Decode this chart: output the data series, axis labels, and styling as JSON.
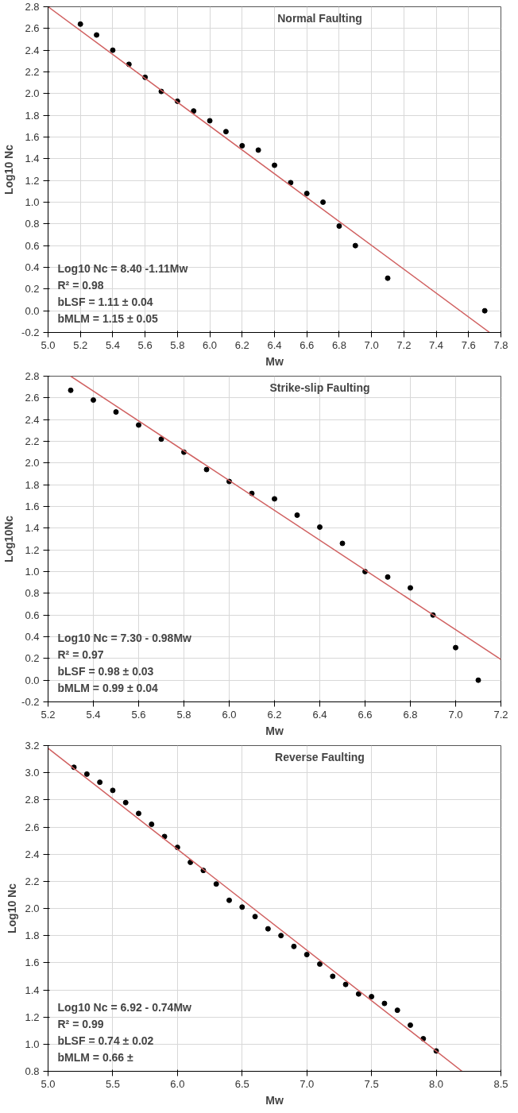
{
  "chart_data": [
    {
      "type": "scatter",
      "title": "Normal Faulting",
      "xlabel": "Mw",
      "ylabel": "Log10 Nc",
      "xlim": [
        5.0,
        7.8
      ],
      "ylim": [
        -0.2,
        2.8
      ],
      "xticks": [
        {
          "value": 5.0,
          "label": "5.0"
        },
        5.2,
        5.4,
        5.6,
        5.8,
        {
          "value": 6.0,
          "label": "6.0"
        },
        6.2,
        6.4,
        6.6,
        6.8,
        {
          "value": 7.0,
          "label": "7.0"
        },
        7.2,
        7.4,
        7.6,
        7.8
      ],
      "yticks": [
        -0.2,
        {
          "value": 0.0,
          "label": "0.0"
        },
        0.2,
        0.4,
        0.6,
        0.8,
        {
          "value": 1.0,
          "label": "1.0"
        },
        1.2,
        1.4,
        1.6,
        1.8,
        {
          "value": 2.0,
          "label": "2.0"
        },
        2.2,
        2.4,
        2.6,
        2.8
      ],
      "grid": true,
      "annotations": [
        "Log10 Nc = 8.40 -1.11Mw",
        "R² = 0.98",
        "bLSF = 1.11 ± 0.04",
        "bMLM = 1.15 ± 0.05"
      ],
      "series": [
        {
          "marker": "circle",
          "color": "#000000",
          "x": [
            5.2,
            5.3,
            5.4,
            5.5,
            5.6,
            5.7,
            5.8,
            5.9,
            6.0,
            6.1,
            6.2,
            6.3,
            6.4,
            6.5,
            6.6,
            6.7,
            6.8,
            6.9,
            7.1,
            7.7
          ],
          "values": [
            2.64,
            2.54,
            2.4,
            2.27,
            2.15,
            2.02,
            1.93,
            1.84,
            1.75,
            1.65,
            1.52,
            1.48,
            1.34,
            1.18,
            1.08,
            1.0,
            0.78,
            0.6,
            0.3,
            0.0
          ]
        },
        {
          "type": "line",
          "color": "#d06060",
          "x": [
            5.0,
            7.73
          ],
          "values": [
            2.8,
            -0.2
          ]
        }
      ]
    },
    {
      "type": "scatter",
      "title": "Strike-slip Faulting",
      "xlabel": "Mw",
      "ylabel": "Log10Nc",
      "xlim": [
        5.2,
        7.2
      ],
      "ylim": [
        -0.2,
        2.8
      ],
      "xticks": [
        5.2,
        5.4,
        5.6,
        5.8,
        {
          "value": 6.0,
          "label": "6.0"
        },
        6.2,
        6.4,
        6.6,
        6.8,
        {
          "value": 7.0,
          "label": "7.0"
        },
        7.2
      ],
      "yticks": [
        -0.2,
        {
          "value": 0.0,
          "label": "0.0"
        },
        0.2,
        0.4,
        0.6,
        0.8,
        {
          "value": 1.0,
          "label": "1.0"
        },
        1.2,
        1.4,
        1.6,
        1.8,
        {
          "value": 2.0,
          "label": "2.0"
        },
        2.2,
        2.4,
        2.6,
        2.8
      ],
      "grid": true,
      "annotations": [
        "Log10 Nc = 7.30 - 0.98Mw",
        "R² = 0.97",
        "bLSF = 0.98 ± 0.03",
        "bMLM = 0.99 ± 0.04"
      ],
      "series": [
        {
          "marker": "circle",
          "color": "#000000",
          "x": [
            5.3,
            5.4,
            5.5,
            5.6,
            5.7,
            5.8,
            5.9,
            6.0,
            6.1,
            6.2,
            6.3,
            6.4,
            6.5,
            6.6,
            6.7,
            6.8,
            6.9,
            7.0,
            7.1
          ],
          "values": [
            2.67,
            2.58,
            2.47,
            2.35,
            2.22,
            2.1,
            1.94,
            1.83,
            1.72,
            1.67,
            1.52,
            1.41,
            1.26,
            1.0,
            0.95,
            0.85,
            0.6,
            0.3,
            0.0
          ]
        },
        {
          "type": "line",
          "color": "#d06060",
          "x": [
            5.3,
            7.2
          ],
          "values": [
            2.8,
            0.19
          ]
        }
      ]
    },
    {
      "type": "scatter",
      "title": "Reverse Faulting",
      "xlabel": "Mw",
      "ylabel": "Log10 Nc",
      "xlim": [
        5.0,
        8.5
      ],
      "ylim": [
        0.8,
        3.2
      ],
      "xticks": [
        {
          "value": 5.0,
          "label": "5.0"
        },
        5.5,
        {
          "value": 6.0,
          "label": "6.0"
        },
        6.5,
        {
          "value": 7.0,
          "label": "7.0"
        },
        7.5,
        {
          "value": 8.0,
          "label": "8.0"
        },
        8.5
      ],
      "yticks": [
        0.8,
        {
          "value": 1.0,
          "label": "1.0"
        },
        1.2,
        1.4,
        1.6,
        1.8,
        {
          "value": 2.0,
          "label": "2.0"
        },
        2.2,
        2.4,
        2.6,
        2.8,
        {
          "value": 3.0,
          "label": "3.0"
        },
        3.2
      ],
      "grid": true,
      "annotations": [
        "Log10 Nc = 6.92 - 0.74Mw",
        "R² = 0.99",
        "bLSF = 0.74 ± 0.02",
        "bMLM = 0.66 ±"
      ],
      "series": [
        {
          "marker": "circle",
          "color": "#000000",
          "x": [
            5.2,
            5.3,
            5.4,
            5.5,
            5.6,
            5.7,
            5.8,
            5.9,
            6.0,
            6.1,
            6.2,
            6.3,
            6.4,
            6.5,
            6.6,
            6.7,
            6.8,
            6.9,
            7.0,
            7.1,
            7.2,
            7.3,
            7.4,
            7.5,
            7.6,
            7.7,
            7.8,
            7.9,
            8.0
          ],
          "values": [
            3.04,
            2.99,
            2.93,
            2.87,
            2.78,
            2.7,
            2.62,
            2.53,
            2.45,
            2.34,
            2.28,
            2.18,
            2.06,
            2.01,
            1.94,
            1.85,
            1.8,
            1.72,
            1.66,
            1.59,
            1.5,
            1.44,
            1.37,
            1.35,
            1.3,
            1.25,
            1.14,
            1.04,
            0.95
          ]
        },
        {
          "type": "line",
          "color": "#d06060",
          "x": [
            5.0,
            8.2
          ],
          "values": [
            3.18,
            0.8
          ]
        }
      ]
    }
  ]
}
